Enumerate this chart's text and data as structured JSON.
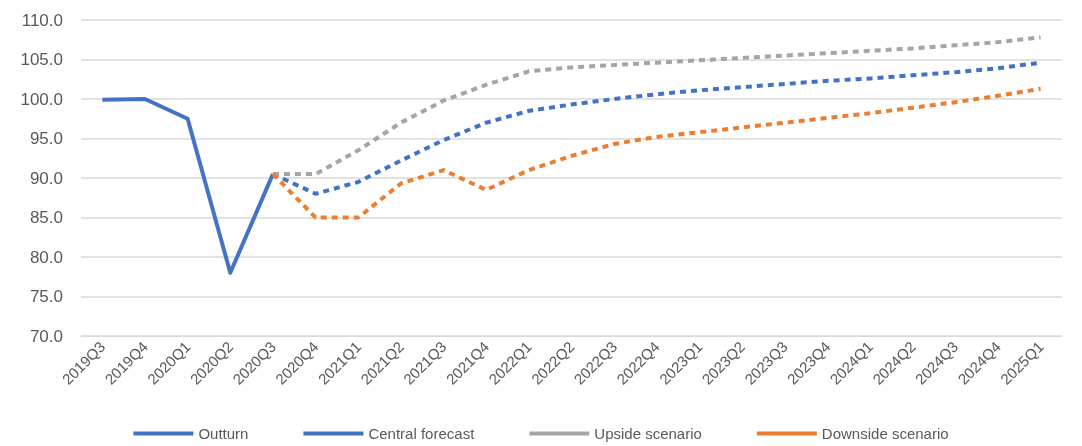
{
  "chart_data": {
    "type": "line",
    "categories": [
      "2019Q3",
      "2019Q4",
      "2020Q1",
      "2020Q2",
      "2020Q3",
      "2020Q4",
      "2021Q1",
      "2021Q2",
      "2021Q3",
      "2021Q4",
      "2022Q1",
      "2022Q2",
      "2022Q3",
      "2022Q4",
      "2023Q1",
      "2023Q2",
      "2023Q3",
      "2023Q4",
      "2024Q1",
      "2024Q2",
      "2024Q3",
      "2024Q4",
      "2025Q1"
    ],
    "series": [
      {
        "name": "Outturn",
        "color": "#4472c4",
        "line_style": "solid",
        "values": [
          99.9,
          100.0,
          97.5,
          78.0,
          90.5,
          null,
          null,
          null,
          null,
          null,
          null,
          null,
          null,
          null,
          null,
          null,
          null,
          null,
          null,
          null,
          null,
          null,
          null
        ]
      },
      {
        "name": "Central forecast",
        "color": "#4472c4",
        "line_style": "dashed",
        "values": [
          null,
          null,
          null,
          null,
          90.5,
          88.0,
          89.5,
          92.2,
          94.8,
          97.0,
          98.5,
          99.3,
          100.0,
          100.6,
          101.1,
          101.5,
          101.9,
          102.3,
          102.6,
          103.0,
          103.4,
          103.9,
          104.6
        ]
      },
      {
        "name": "Upside scenario",
        "color": "#a5a5a5",
        "line_style": "dashed",
        "values": [
          null,
          null,
          null,
          null,
          90.5,
          90.5,
          93.5,
          97.0,
          99.8,
          101.8,
          103.5,
          104.0,
          104.3,
          104.6,
          104.9,
          105.2,
          105.5,
          105.8,
          106.1,
          106.4,
          106.8,
          107.2,
          107.8
        ]
      },
      {
        "name": "Downside scenario",
        "color": "#ed7d31",
        "line_style": "dashed",
        "values": [
          null,
          null,
          null,
          null,
          90.5,
          85.0,
          85.0,
          89.3,
          91.0,
          88.5,
          91.0,
          92.8,
          94.3,
          95.2,
          95.8,
          96.4,
          97.0,
          97.6,
          98.2,
          98.9,
          99.6,
          100.4,
          101.3
        ]
      }
    ],
    "ylim": [
      70,
      110
    ],
    "yticks": [
      {
        "value": 70,
        "label": "70.0"
      },
      {
        "value": 75,
        "label": "75.0"
      },
      {
        "value": 80,
        "label": "80.0"
      },
      {
        "value": 85,
        "label": "85.0"
      },
      {
        "value": 90,
        "label": "90.0"
      },
      {
        "value": 95,
        "label": "95.0"
      },
      {
        "value": 100,
        "label": "100.0"
      },
      {
        "value": 105,
        "label": "105.0"
      },
      {
        "value": 110,
        "label": "110.0"
      }
    ],
    "grid": "y",
    "legend": "bottom",
    "marker": "none"
  }
}
